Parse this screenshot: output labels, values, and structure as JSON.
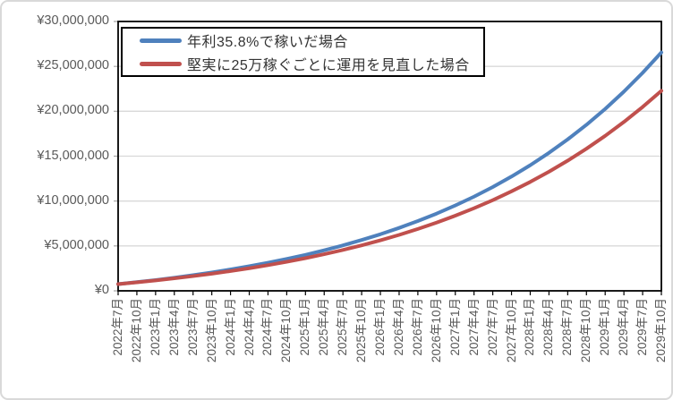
{
  "chart_data": {
    "type": "line",
    "title": "",
    "xlabel": "",
    "ylabel": "",
    "ylim": [
      0,
      30000000
    ],
    "y_major_unit": 5000000,
    "currency": "JPY",
    "grid": "horizontal",
    "legend_position": "top-left-inside",
    "y_tick_labels": [
      "¥0",
      "¥5,000,000",
      "¥10,000,000",
      "¥15,000,000",
      "¥20,000,000",
      "¥25,000,000",
      "¥30,000,000"
    ],
    "categories": [
      "2022年7月",
      "2022年10月",
      "2023年1月",
      "2023年4月",
      "2023年7月",
      "2023年10月",
      "2024年1月",
      "2024年4月",
      "2024年7月",
      "2024年10月",
      "2025年1月",
      "2025年4月",
      "2025年7月",
      "2025年10月",
      "2026年1月",
      "2026年4月",
      "2026年7月",
      "2026年10月",
      "2027年1月",
      "2027年4月",
      "2027年7月",
      "2027年10月",
      "2028年1月",
      "2028年4月",
      "2028年7月",
      "2028年10月",
      "2029年1月",
      "2029年4月",
      "2029年7月",
      "2029年10月"
    ],
    "series": [
      {
        "name": "年利35.8%で稼いだ場合",
        "color": "#4F81BD",
        "values": [
          750000,
          970000,
          1200000,
          1460000,
          1740000,
          2050000,
          2380000,
          2740000,
          3130000,
          3550000,
          4010000,
          4520000,
          5060000,
          5660000,
          6300000,
          7010000,
          7770000,
          8600000,
          9510000,
          10490000,
          11560000,
          12730000,
          13990000,
          15370000,
          16870000,
          18490000,
          20260000,
          22190000,
          24280000,
          26550000
        ]
      },
      {
        "name": "堅実に25万稼ぐごとに運用を見直した場合",
        "color": "#C0504D",
        "values": [
          750000,
          950000,
          1160000,
          1390000,
          1640000,
          1910000,
          2200000,
          2520000,
          2860000,
          3230000,
          3640000,
          4080000,
          4550000,
          5070000,
          5630000,
          6230000,
          6890000,
          7600000,
          8370000,
          9200000,
          10100000,
          11080000,
          12130000,
          13270000,
          14500000,
          15830000,
          17260000,
          18810000,
          20480000,
          22280000
        ]
      }
    ],
    "colors": {
      "plot_border": "#000000",
      "gridline": "#d9d9d9",
      "axis_tick": "#000000",
      "axis_label_text": "#595959",
      "legend_text": "#333333",
      "chart_frame_border": "#d9d9d9",
      "background": "#ffffff"
    }
  }
}
